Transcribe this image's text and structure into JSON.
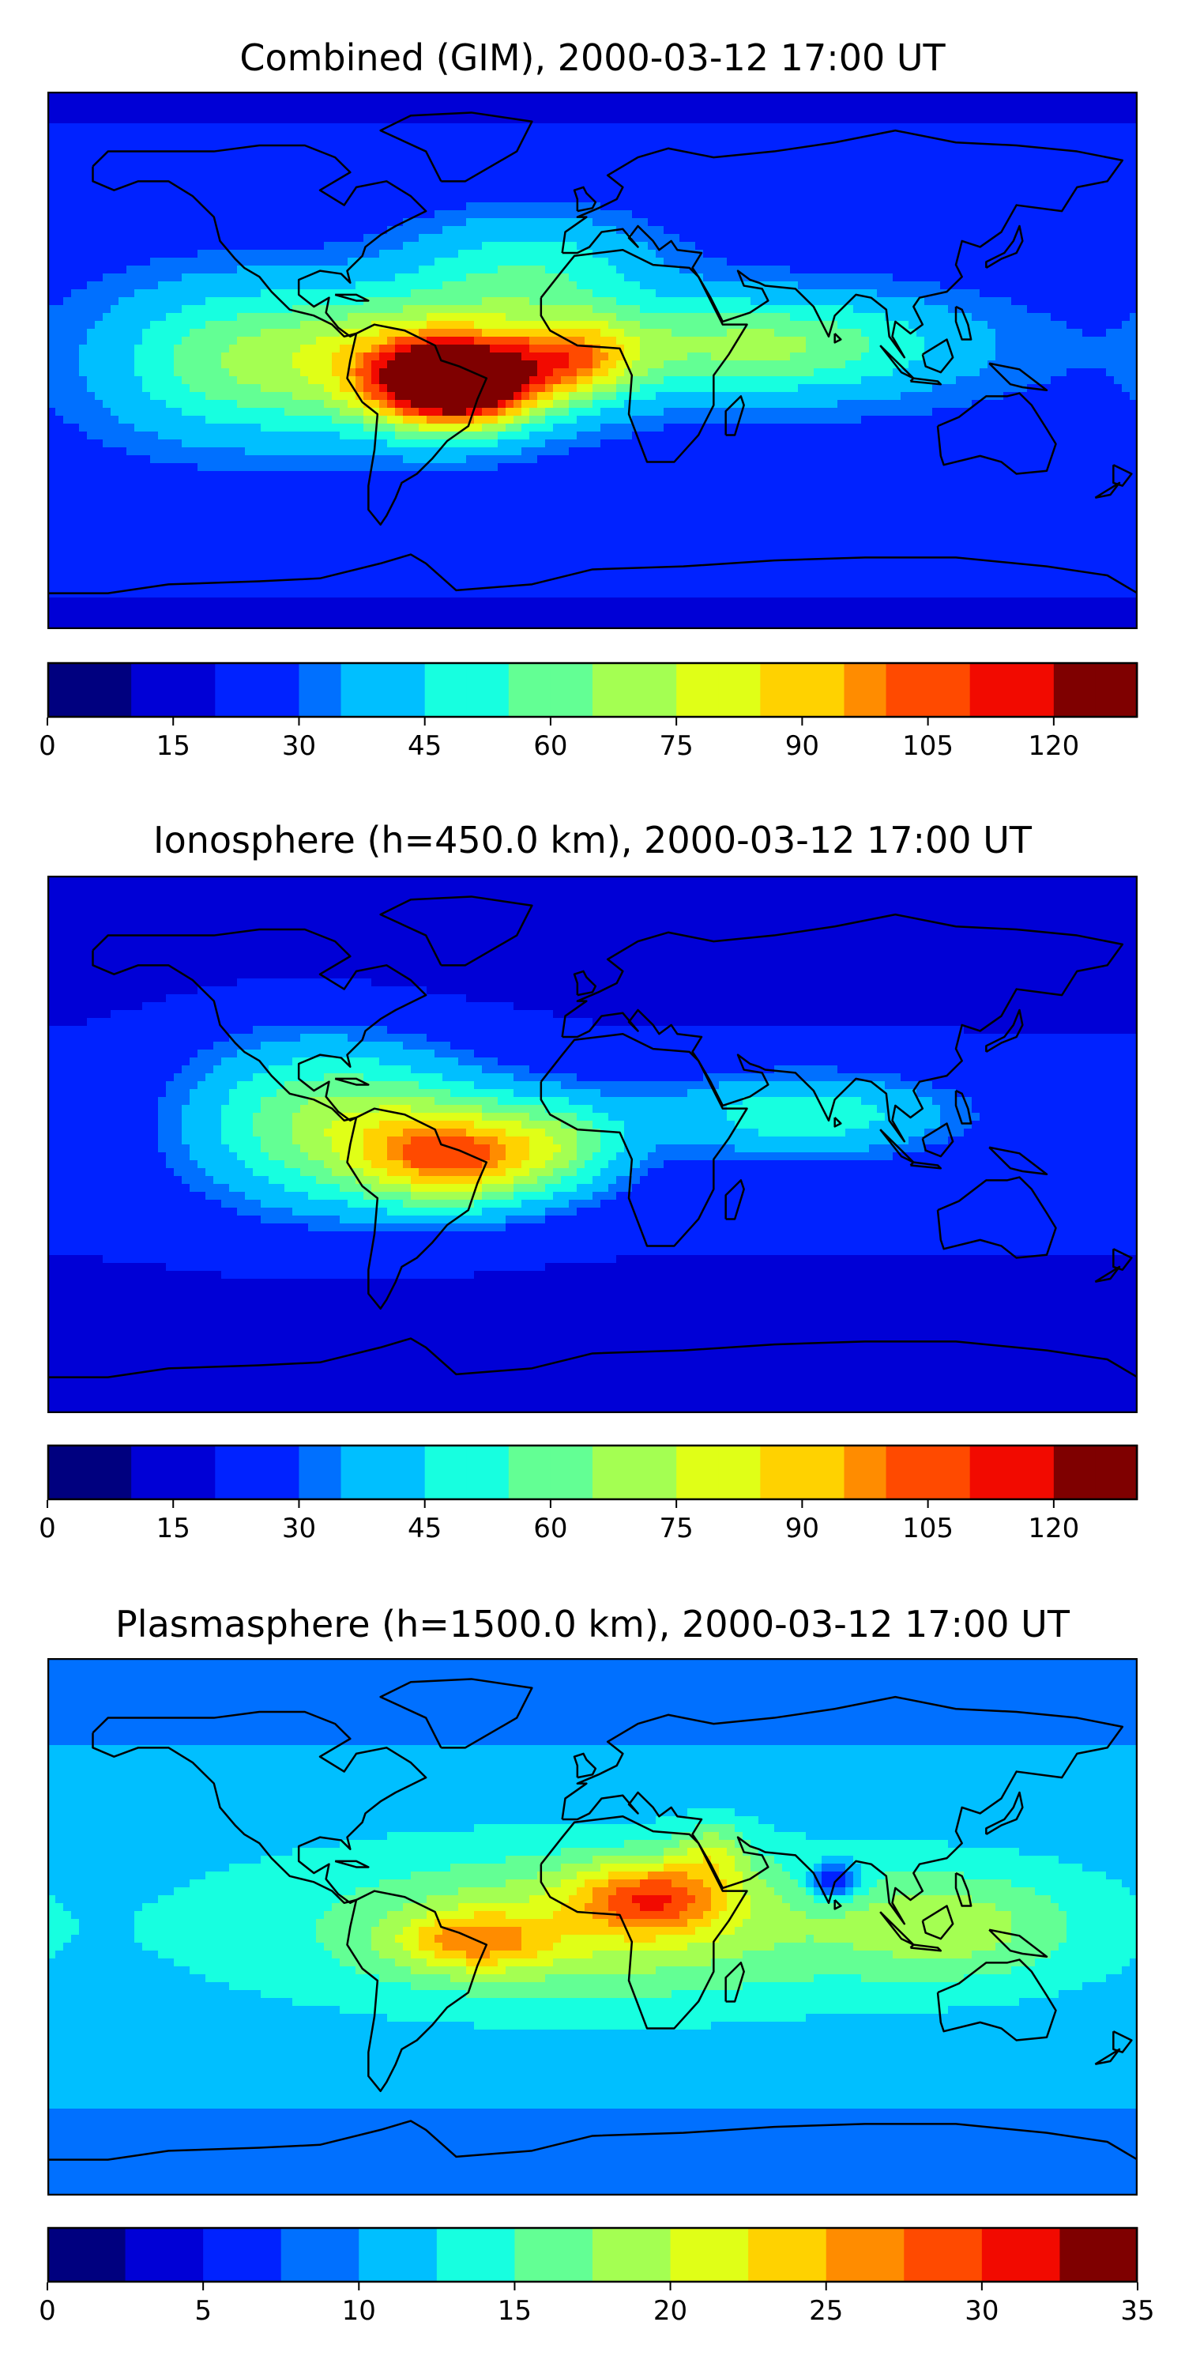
{
  "panels": [
    {
      "title": "Combined (GIM), 2000-03-12 17:00 UT",
      "colorbar": {
        "min": 0,
        "max": 130,
        "levels": 26,
        "ticks": [
          "0",
          "15",
          "30",
          "45",
          "60",
          "75",
          "90",
          "105",
          "120"
        ],
        "tick_values": [
          0,
          15,
          30,
          45,
          60,
          75,
          90,
          105,
          120
        ]
      },
      "field_max": 130,
      "blobs": [
        {
          "lon": -45,
          "lat": -8,
          "amp": 105,
          "slon": 26,
          "slat": 14
        },
        {
          "lon": -5,
          "lat": 0,
          "amp": 45,
          "slon": 22,
          "slat": 14
        },
        {
          "lon": -60,
          "lat": 0,
          "amp": 50,
          "slon": 45,
          "slat": 22
        },
        {
          "lon": 55,
          "lat": 5,
          "amp": 40,
          "slon": 60,
          "slat": 16
        },
        {
          "lon": -20,
          "lat": 30,
          "amp": 25,
          "slon": 40,
          "slat": 20
        },
        {
          "lon": -120,
          "lat": 0,
          "amp": 30,
          "slon": 40,
          "slat": 25
        }
      ],
      "base": 18
    },
    {
      "title": "Ionosphere  (h=450.0 km), 2000-03-12 17:00 UT",
      "colorbar": {
        "min": 0,
        "max": 130,
        "levels": 26,
        "ticks": [
          "0",
          "15",
          "30",
          "45",
          "60",
          "75",
          "90",
          "105",
          "120"
        ],
        "tick_values": [
          0,
          15,
          30,
          45,
          60,
          75,
          90,
          105,
          120
        ]
      },
      "field_max": 130,
      "blobs": [
        {
          "lon": -45,
          "lat": -5,
          "amp": 58,
          "slon": 30,
          "slat": 16
        },
        {
          "lon": -10,
          "lat": 0,
          "amp": 30,
          "slon": 25,
          "slat": 16
        },
        {
          "lon": -70,
          "lat": 5,
          "amp": 35,
          "slon": 45,
          "slat": 25
        },
        {
          "lon": 70,
          "lat": 10,
          "amp": 30,
          "slon": 50,
          "slat": 14
        },
        {
          "lon": -100,
          "lat": 10,
          "amp": 20,
          "slon": 40,
          "slat": 30
        }
      ],
      "base": 12
    },
    {
      "title": "Plasmasphere (h=1500.0 km), 2000-03-12 17:00 UT",
      "colorbar": {
        "min": 0,
        "max": 35,
        "levels": 14,
        "ticks": [
          "0",
          "5",
          "10",
          "15",
          "20",
          "25",
          "30",
          "35"
        ],
        "tick_values": [
          0,
          5,
          10,
          15,
          20,
          25,
          30,
          35
        ]
      },
      "field_max": 35,
      "blobs": [
        {
          "lon": 20,
          "lat": 10,
          "amp": 12,
          "slon": 25,
          "slat": 12
        },
        {
          "lon": -40,
          "lat": -5,
          "amp": 9,
          "slon": 25,
          "slat": 10
        },
        {
          "lon": 40,
          "lat": 25,
          "amp": 6,
          "slon": 12,
          "slat": 10
        },
        {
          "lon": 0,
          "lat": 0,
          "amp": 8,
          "slon": 90,
          "slat": 25
        },
        {
          "lon": 120,
          "lat": 0,
          "amp": 6,
          "slon": 40,
          "slat": 18
        },
        {
          "lon": 80,
          "lat": 15,
          "amp": -10,
          "slon": 8,
          "slat": 6
        }
      ],
      "base": 8
    }
  ],
  "colormap": [
    "#00007f",
    "#0000d6",
    "#0022ff",
    "#0070ff",
    "#00bfff",
    "#17ffe0",
    "#63ff94",
    "#a4ff52",
    "#e0ff17",
    "#ffd200",
    "#ff8c00",
    "#ff4a00",
    "#f20a00",
    "#7f0000"
  ],
  "coastline_color": "#000000"
}
